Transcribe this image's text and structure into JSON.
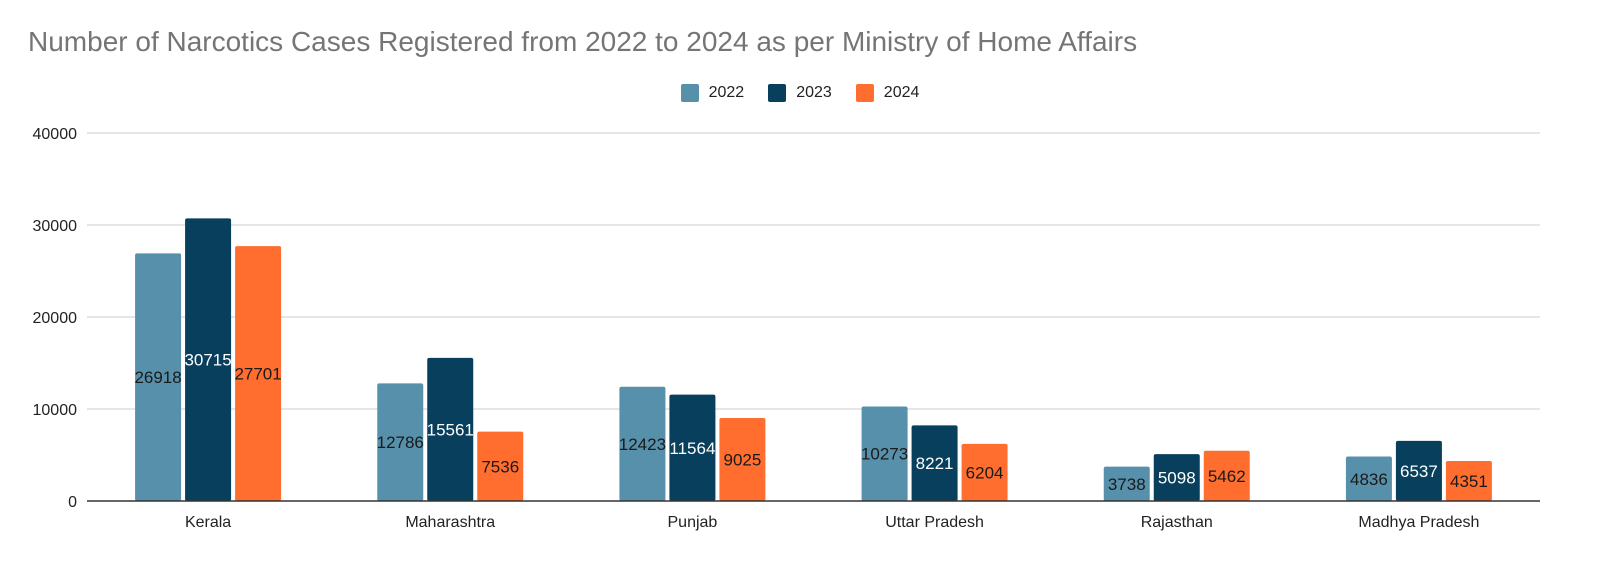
{
  "chart_data": {
    "type": "bar",
    "title": "Number of Narcotics Cases Registered from 2022 to 2024 as per Ministry of Home Affairs",
    "xlabel": "",
    "ylabel": "",
    "categories": [
      "Kerala",
      "Maharashtra",
      "Punjab",
      "Uttar Pradesh",
      "Rajasthan",
      "Madhya Pradesh"
    ],
    "series": [
      {
        "name": "2022",
        "color": "#5790ab",
        "label_color": "#1a1a1a",
        "values": [
          26918,
          12786,
          12423,
          10273,
          3738,
          4836
        ]
      },
      {
        "name": "2023",
        "color": "#073f5c",
        "label_color": "#ffffff",
        "values": [
          30715,
          15561,
          11564,
          8221,
          5098,
          6537
        ]
      },
      {
        "name": "2024",
        "color": "#ff6d2f",
        "label_color": "#1a1a1a",
        "values": [
          27701,
          7536,
          9025,
          6204,
          5462,
          4351
        ]
      }
    ],
    "ylim": [
      0,
      40000
    ],
    "y_ticks": [
      0,
      10000,
      20000,
      30000,
      40000
    ],
    "grid": true,
    "legend_position": "top-center"
  }
}
